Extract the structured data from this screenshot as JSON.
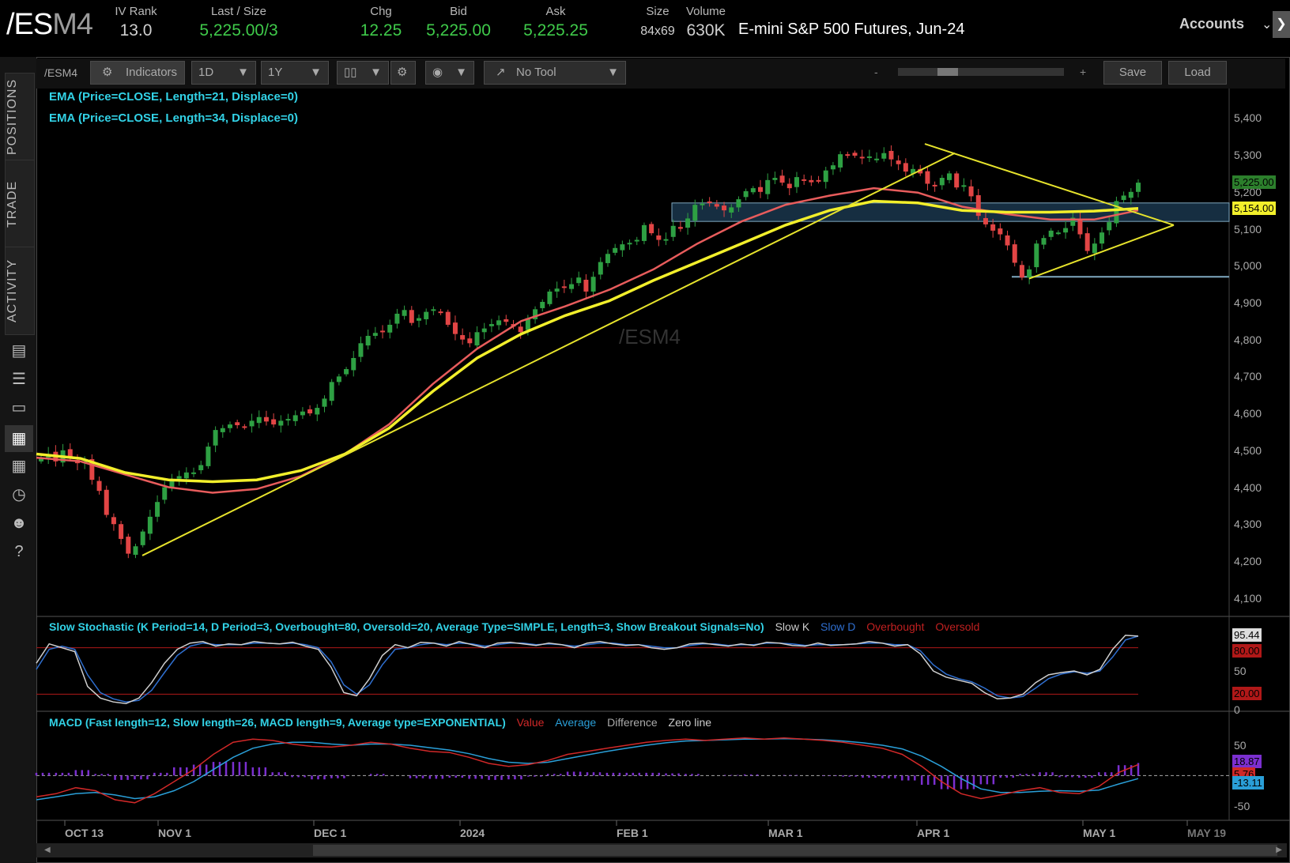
{
  "quote": {
    "symbol_main": "/ES",
    "symbol_month": "M4",
    "description": "E-mini S&P 500 Futures, Jun-24",
    "fields": [
      {
        "label": "IV Rank",
        "value": "13.0",
        "color": "#cfcfcf"
      },
      {
        "label": "Last / Size",
        "value": "5,225.00",
        "extra": "/3",
        "color": "#3fca4a"
      },
      {
        "label": "Chg",
        "value": "12.25",
        "color": "#3fca4a"
      },
      {
        "label": "Bid",
        "value": "5,225.00",
        "color": "#3fca4a"
      },
      {
        "label": "Ask",
        "value": "5,225.25",
        "color": "#3fca4a"
      },
      {
        "label": "Size",
        "value": "84x69",
        "color": "#cfcfcf"
      },
      {
        "label": "Volume",
        "value": "630K",
        "color": "#cfcfcf"
      }
    ]
  },
  "accounts": {
    "label": "Accounts"
  },
  "sidebar": {
    "tabs": [
      "POSITIONS",
      "TRADE",
      "ACTIVITY"
    ]
  },
  "toolbar": {
    "symbol": "/ESM4",
    "indicators_label": "Indicators",
    "aggregation": "1D",
    "timeframe": "1Y",
    "drawing_tool": "No Tool",
    "zoom_minus": "-",
    "zoom_plus": "+",
    "save_label": "Save",
    "load_label": "Load"
  },
  "studies": {
    "ema1": "EMA (Price=CLOSE, Length=21, Displace=0)",
    "ema2": "EMA (Price=CLOSE, Length=34, Displace=0)",
    "stoch": "Slow Stochastic (K Period=14, D Period=3, Overbought=80, Oversold=20, Average Type=SIMPLE, Length=3, Show Breakout Signals=No)",
    "stoch_legend": [
      "Slow K",
      "Slow D",
      "Overbought",
      "Oversold"
    ],
    "macd": "MACD (Fast length=12, Slow length=26, MACD length=9, Average type=EXPONENTIAL)",
    "macd_legend": [
      "Value",
      "Average",
      "Difference",
      "Zero line"
    ]
  },
  "watermark": "/ESM4",
  "colors": {
    "up": "#2ea043",
    "down": "#e24545",
    "ema21": "#e85c5c",
    "ema34": "#f2ef2b",
    "trend": "#e6e32c",
    "zone": "#1d3d57"
  },
  "chart_data": [
    {
      "type": "candlestick",
      "series": [
        {
          "name": "EMA (Price=CLOSE, Length=21, Displace=0)"
        },
        {
          "name": "EMA (Price=CLOSE, Length=34, Displace=0)"
        }
      ],
      "ylim": [
        4050,
        5480
      ],
      "y_ticks": [
        "5,400",
        "5,300",
        "5,200",
        "5,100",
        "5,000",
        "4,900",
        "4,800",
        "4,700",
        "4,600",
        "4,500",
        "4,400",
        "4,300",
        "4,200",
        "4,100"
      ],
      "x_ticks": [
        "OCT 13",
        "NOV 1",
        "DEC 1",
        "2024",
        "FEB 1",
        "MAR 1",
        "APR 1",
        "MAY 1",
        "MAY 19"
      ],
      "price_tags": [
        {
          "value": "5,225.00"
        },
        {
          "value": "5,154.00"
        }
      ],
      "closes": [
        4480,
        4490,
        4470,
        4500,
        4480,
        4465,
        4470,
        4420,
        4390,
        4325,
        4300,
        4260,
        4220,
        4240,
        4280,
        4320,
        4360,
        4400,
        4420,
        4430,
        4440,
        4440,
        4460,
        4510,
        4555,
        4560,
        4570,
        4568,
        4562,
        4580,
        4590,
        4578,
        4570,
        4580,
        4585,
        4595,
        4605,
        4600,
        4615,
        4640,
        4685,
        4700,
        4720,
        4750,
        4790,
        4810,
        4818,
        4822,
        4840,
        4870,
        4880,
        4845,
        4858,
        4875,
        4882,
        4875,
        4840,
        4815,
        4800,
        4790,
        4820,
        4830,
        4842,
        4852,
        4848,
        4835,
        4820,
        4858,
        4882,
        4902,
        4930,
        4938,
        4940,
        4950,
        4968,
        4930,
        4970,
        5010,
        5032,
        5048,
        5058,
        5062,
        5070,
        5110,
        5088,
        5070,
        5072,
        5108,
        5100,
        5128,
        5165,
        5168,
        5170,
        5160,
        5150,
        5158,
        5180,
        5202,
        5210,
        5200,
        5232,
        5238,
        5225,
        5210,
        5240,
        5232,
        5226,
        5230,
        5258,
        5272,
        5302,
        5300,
        5298,
        5292,
        5296,
        5290,
        5305,
        5288,
        5275,
        5255,
        5262,
        5250,
        5222,
        5215,
        5238,
        5250,
        5212,
        5218,
        5188,
        5135,
        5112,
        5095,
        5085,
        5055,
        5008,
        4968,
        4990,
        5060,
        5075,
        5095,
        5090,
        5102,
        5130,
        5085,
        5040,
        5060,
        5090,
        5118,
        5175,
        5190,
        5200,
        5225
      ],
      "ema21_approx": [
        4480,
        4470,
        4435,
        4400,
        4385,
        4395,
        4430,
        4490,
        4570,
        4680,
        4775,
        4850,
        4890,
        4935,
        4990,
        5060,
        5120,
        5165,
        5190,
        5210,
        5198,
        5160,
        5140,
        5125,
        5125,
        5150
      ],
      "ema34_approx": [
        4490,
        4478,
        4440,
        4420,
        4415,
        4420,
        4445,
        4490,
        4560,
        4660,
        4750,
        4815,
        4865,
        4905,
        4960,
        5010,
        5060,
        5110,
        5150,
        5175,
        5170,
        5150,
        5145,
        5145,
        5148,
        5155
      ],
      "trendlines": [
        {
          "from": [
            "late Oct",
            4215
          ],
          "to": [
            "mid Apr",
            5305
          ]
        },
        {
          "from": [
            "end Mar",
            5330
          ],
          "to": [
            "mid May",
            5110
          ]
        },
        {
          "from": [
            "mid Apr",
            4965
          ],
          "to": [
            "mid May",
            5110
          ]
        }
      ],
      "support_zone": [
        5120,
        5170
      ],
      "support_line": 4970
    },
    {
      "type": "line",
      "title": "Slow Stochastic",
      "ylim": [
        0,
        100
      ],
      "y_ticks": [
        "50",
        "0"
      ],
      "tags": [
        {
          "value": "95.44"
        },
        {
          "value": "80.00"
        },
        {
          "value": "20.00"
        }
      ],
      "overbought": 80,
      "oversold": 20,
      "slow_k": [
        60,
        85,
        80,
        75,
        30,
        15,
        10,
        8,
        15,
        35,
        60,
        78,
        86,
        88,
        82,
        85,
        84,
        88,
        86,
        85,
        87,
        82,
        78,
        55,
        22,
        18,
        40,
        70,
        84,
        80,
        87,
        86,
        82,
        88,
        84,
        80,
        86,
        87,
        85,
        83,
        86,
        84,
        80,
        86,
        88,
        85,
        83,
        84,
        80,
        78,
        80,
        85,
        86,
        84,
        82,
        85,
        83,
        87,
        86,
        83,
        82,
        86,
        83,
        84,
        85,
        88,
        86,
        82,
        84,
        72,
        50,
        42,
        38,
        34,
        22,
        14,
        15,
        20,
        35,
        45,
        48,
        50,
        45,
        52,
        78,
        96,
        95
      ],
      "slow_d": [
        52,
        78,
        82,
        78,
        45,
        22,
        14,
        10,
        12,
        25,
        48,
        70,
        82,
        86,
        84,
        84,
        84,
        86,
        86,
        85,
        86,
        84,
        80,
        62,
        32,
        20,
        32,
        58,
        78,
        80,
        84,
        86,
        84,
        86,
        85,
        82,
        84,
        86,
        86,
        84,
        85,
        84,
        82,
        84,
        86,
        86,
        84,
        84,
        82,
        80,
        80,
        83,
        85,
        85,
        83,
        84,
        84,
        86,
        86,
        85,
        83,
        84,
        84,
        84,
        85,
        86,
        86,
        84,
        84,
        76,
        58,
        46,
        40,
        36,
        28,
        18,
        15,
        17,
        28,
        40,
        46,
        49,
        47,
        50,
        68,
        90,
        95
      ]
    },
    {
      "type": "line",
      "title": "MACD",
      "ylim": [
        -70,
        80
      ],
      "y_ticks": [
        "50",
        "-50"
      ],
      "tags": [
        {
          "value": "18.87"
        },
        {
          "value": "5.76"
        },
        {
          "value": "-13.11"
        }
      ],
      "value": [
        -35,
        -30,
        -20,
        -25,
        -40,
        -45,
        -30,
        -10,
        10,
        35,
        55,
        60,
        58,
        52,
        48,
        47,
        50,
        55,
        52,
        45,
        40,
        38,
        30,
        20,
        15,
        18,
        25,
        35,
        40,
        45,
        50,
        55,
        58,
        60,
        58,
        60,
        62,
        60,
        62,
        60,
        58,
        55,
        50,
        45,
        35,
        15,
        -10,
        -30,
        -38,
        -32,
        -25,
        -20,
        -28,
        -30,
        -18,
        5,
        18
      ],
      "average": [
        -40,
        -35,
        -30,
        -28,
        -32,
        -38,
        -35,
        -25,
        -10,
        10,
        30,
        45,
        52,
        55,
        55,
        52,
        50,
        52,
        52,
        50,
        46,
        42,
        36,
        28,
        22,
        20,
        22,
        28,
        34,
        40,
        45,
        50,
        54,
        57,
        58,
        59,
        60,
        60,
        61,
        60,
        59,
        57,
        54,
        50,
        44,
        32,
        15,
        -5,
        -22,
        -28,
        -28,
        -26,
        -25,
        -26,
        -24,
        -14,
        -5
      ]
    }
  ]
}
